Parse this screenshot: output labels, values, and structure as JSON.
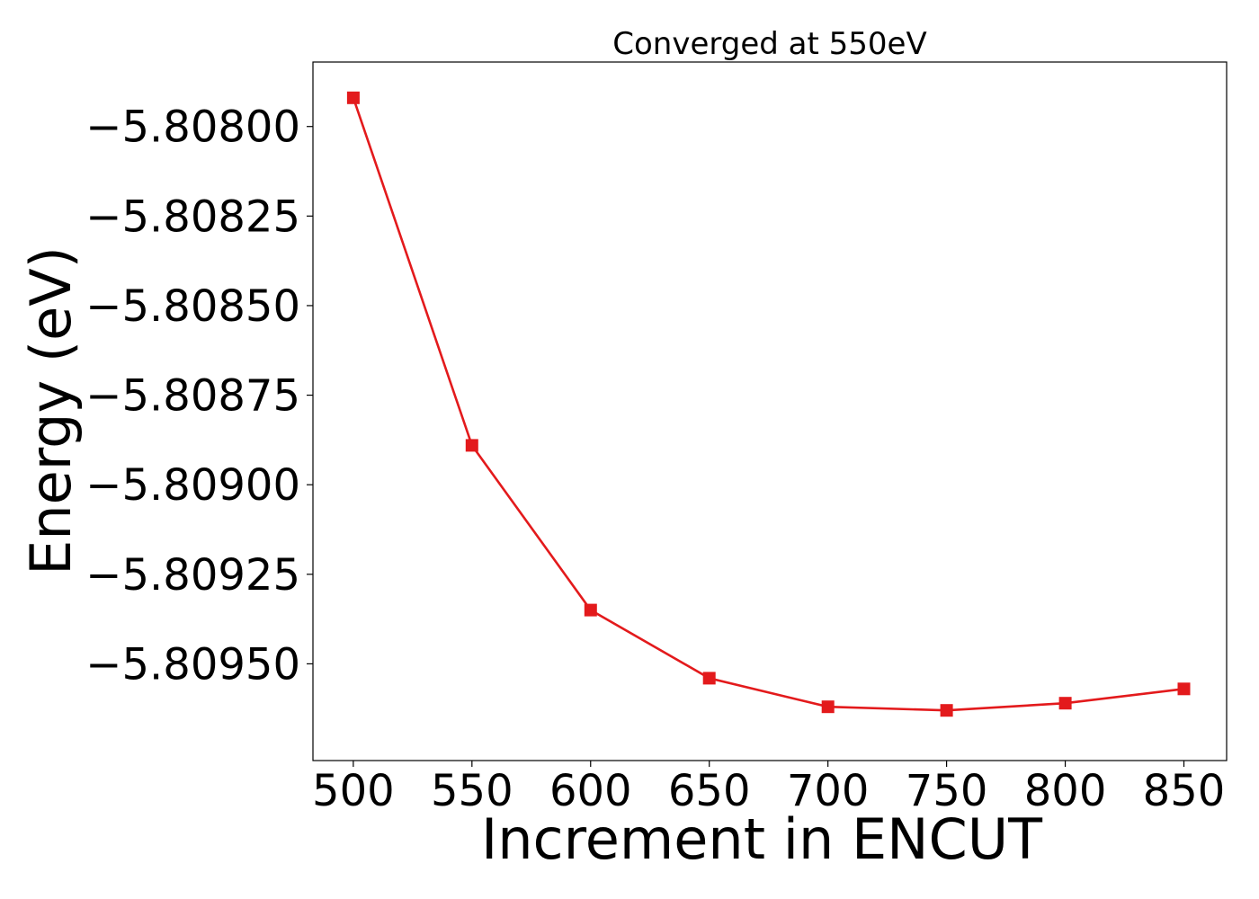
{
  "chart_data": {
    "type": "line",
    "title": "Converged at 550eV",
    "xlabel": "Increment in ENCUT",
    "ylabel": "Energy (eV)",
    "x": [
      500,
      550,
      600,
      650,
      700,
      750,
      800,
      850
    ],
    "x_ticks": [
      500,
      550,
      600,
      650,
      700,
      750,
      800,
      850
    ],
    "x_tick_labels": [
      "500",
      "550",
      "600",
      "650",
      "700",
      "750",
      "800",
      "850"
    ],
    "xlim": [
      483,
      868
    ],
    "y_ticks": [
      -5.808,
      -5.80825,
      -5.8085,
      -5.80875,
      -5.809,
      -5.80925,
      -5.8095
    ],
    "y_tick_labels": [
      "−5.80800",
      "−5.80825",
      "−5.80850",
      "−5.80875",
      "−5.80900",
      "−5.80925",
      "−5.80950"
    ],
    "ylim": [
      -5.80977,
      -5.80782
    ],
    "series": [
      {
        "values": [
          -5.80792,
          -5.80889,
          -5.80935,
          -5.80954,
          -5.80962,
          -5.80963,
          -5.80961,
          -5.80957
        ],
        "color": "#e31a1c",
        "marker": "square"
      }
    ],
    "grid": false,
    "legend": "none"
  }
}
